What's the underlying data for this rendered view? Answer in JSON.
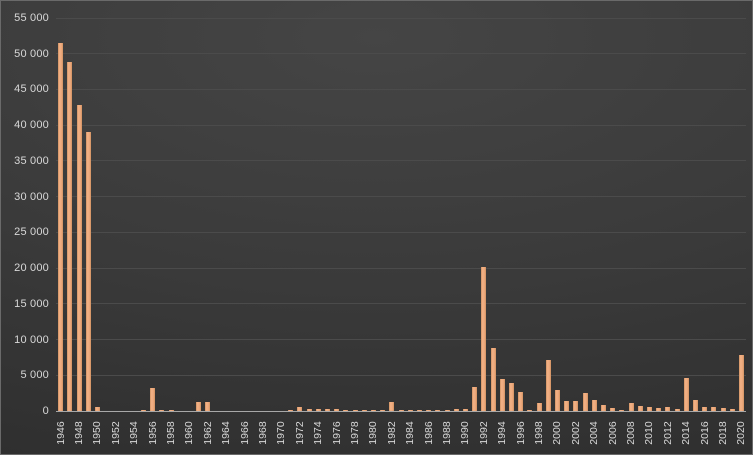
{
  "chart_data": {
    "type": "bar",
    "title": "",
    "xlabel": "",
    "ylabel": "",
    "x": [
      1946,
      1947,
      1948,
      1949,
      1950,
      1951,
      1952,
      1953,
      1954,
      1955,
      1956,
      1957,
      1958,
      1959,
      1960,
      1961,
      1962,
      1963,
      1964,
      1965,
      1966,
      1967,
      1968,
      1969,
      1970,
      1971,
      1972,
      1973,
      1974,
      1975,
      1976,
      1977,
      1978,
      1979,
      1980,
      1981,
      1982,
      1983,
      1984,
      1985,
      1986,
      1987,
      1988,
      1989,
      1990,
      1991,
      1992,
      1993,
      1994,
      1995,
      1996,
      1997,
      1998,
      1999,
      2000,
      2001,
      2002,
      2003,
      2004,
      2005,
      2006,
      2007,
      2008,
      2009,
      2010,
      2011,
      2012,
      2013,
      2014,
      2015,
      2016,
      2017,
      2018,
      2019,
      2020
    ],
    "values": [
      51500,
      48800,
      42800,
      39000,
      600,
      0,
      0,
      0,
      0,
      100,
      3250,
      200,
      100,
      0,
      0,
      1300,
      1300,
      0,
      0,
      0,
      0,
      0,
      0,
      0,
      0,
      100,
      550,
      250,
      250,
      300,
      250,
      150,
      100,
      100,
      100,
      100,
      1300,
      100,
      100,
      100,
      100,
      100,
      150,
      250,
      250,
      3300,
      20100,
      8800,
      4500,
      3900,
      2700,
      150,
      1150,
      7100,
      2900,
      1400,
      1450,
      2500,
      1500,
      800,
      350,
      150,
      1050,
      700,
      550,
      450,
      600,
      300,
      4600,
      1550,
      550,
      600,
      350,
      250,
      7800
    ],
    "ylim": [
      0,
      55000
    ],
    "ytick_step": 5000,
    "ytick_labels": [
      "0",
      "5 000",
      "10 000",
      "15 000",
      "20 000",
      "25 000",
      "30 000",
      "35 000",
      "40 000",
      "45 000",
      "50 000",
      "55 000"
    ],
    "xtick_labels": [
      "1946",
      "1948",
      "1950",
      "1952",
      "1954",
      "1956",
      "1958",
      "1960",
      "1962",
      "1964",
      "1966",
      "1968",
      "1970",
      "1972",
      "1974",
      "1976",
      "1978",
      "1980",
      "1982",
      "1984",
      "1986",
      "1988",
      "1990",
      "1992",
      "1994",
      "1996",
      "1998",
      "2000",
      "2002",
      "2004",
      "2006",
      "2008",
      "2010",
      "2012",
      "2014",
      "2016",
      "2018",
      "2020"
    ],
    "xtick_every": 2,
    "grid": true,
    "legend": "none",
    "colors": {
      "bar": "#ECA97C",
      "background": "#3A3A3A",
      "gridline": "#4B4B4B",
      "axis_line": "#A8A8A8",
      "label": "#D8D8D8"
    }
  }
}
